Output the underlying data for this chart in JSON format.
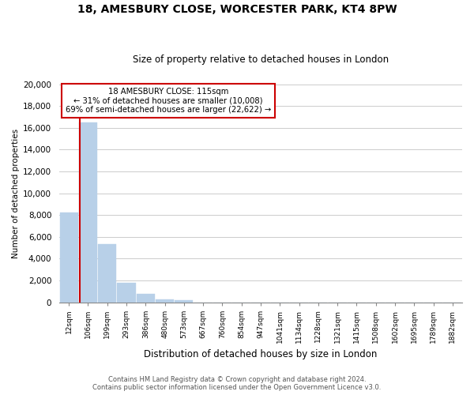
{
  "title_line1": "18, AMESBURY CLOSE, WORCESTER PARK, KT4 8PW",
  "title_line2": "Size of property relative to detached houses in London",
  "xlabel": "Distribution of detached houses by size in London",
  "ylabel": "Number of detached properties",
  "bar_labels": [
    "12sqm",
    "106sqm",
    "199sqm",
    "293sqm",
    "386sqm",
    "480sqm",
    "573sqm",
    "667sqm",
    "760sqm",
    "854sqm",
    "947sqm",
    "1041sqm",
    "1134sqm",
    "1228sqm",
    "1321sqm",
    "1415sqm",
    "1508sqm",
    "1602sqm",
    "1695sqm",
    "1789sqm",
    "1882sqm"
  ],
  "bar_values": [
    8200,
    16500,
    5300,
    1750,
    750,
    250,
    150,
    0,
    0,
    0,
    0,
    0,
    0,
    0,
    0,
    0,
    0,
    0,
    0,
    0,
    0
  ],
  "bar_color": "#b8d0e8",
  "bar_edge_color": "#b8d0e8",
  "ylim": [
    0,
    20000
  ],
  "yticks": [
    0,
    2000,
    4000,
    6000,
    8000,
    10000,
    12000,
    14000,
    16000,
    18000,
    20000
  ],
  "property_line_x": 0.55,
  "property_line_color": "#cc0000",
  "annotation_title": "18 AMESBURY CLOSE: 115sqm",
  "annotation_line1": "← 31% of detached houses are smaller (10,008)",
  "annotation_line2": "69% of semi-detached houses are larger (22,622) →",
  "annotation_box_color": "#ffffff",
  "annotation_box_edge": "#cc0000",
  "grid_color": "#cccccc",
  "footer_line1": "Contains HM Land Registry data © Crown copyright and database right 2024.",
  "footer_line2": "Contains public sector information licensed under the Open Government Licence v3.0."
}
